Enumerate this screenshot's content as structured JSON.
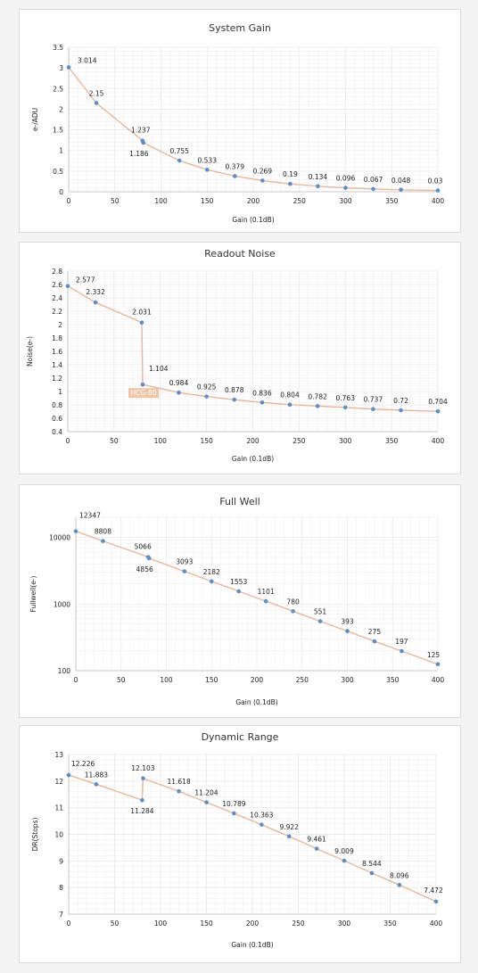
{
  "colors": {
    "line": "#e8b79d",
    "point": "#5b8fc9",
    "grid": "#e9e9e9",
    "badge_bg": "#f2c4a8",
    "badge_text": "#ffffff"
  },
  "chart_data": [
    {
      "type": "line",
      "title": "System Gain",
      "xlabel": "Gain (0.1dB)",
      "ylabel": "e-/ADU",
      "xlim": [
        0,
        400
      ],
      "ylim": [
        0,
        3.5
      ],
      "xticks": [
        0,
        50,
        100,
        150,
        200,
        250,
        300,
        350,
        400
      ],
      "yticks": [
        0,
        0.5,
        1,
        1.5,
        2,
        2.5,
        3,
        3.5
      ],
      "ytick_labels": [
        "0",
        "0.5",
        "1",
        "1.5",
        "2",
        "2.5",
        "3",
        "3.5"
      ],
      "grid": true,
      "x": [
        0,
        30,
        80,
        81,
        120,
        150,
        180,
        210,
        240,
        270,
        300,
        330,
        360,
        400
      ],
      "y": [
        3.014,
        2.15,
        1.237,
        1.186,
        0.755,
        0.533,
        0.379,
        0.269,
        0.19,
        0.134,
        0.096,
        0.067,
        0.048,
        0.03
      ],
      "labels": [
        "3.014",
        "2.15",
        "1.237",
        "1.186",
        "0.755",
        "0.533",
        "0.379",
        "0.269",
        "0.19",
        "0.134",
        "0.096",
        "0.067",
        "0.048",
        "0.03"
      ]
    },
    {
      "type": "line",
      "title": "Readout Noise",
      "xlabel": "Gain (0.1dB)",
      "ylabel": "Noise(e-)",
      "xlim": [
        0,
        400
      ],
      "ylim": [
        0.4,
        2.8
      ],
      "xticks": [
        0,
        50,
        100,
        150,
        200,
        250,
        300,
        350,
        400
      ],
      "yticks": [
        0.4,
        0.6,
        0.8,
        1,
        1.2,
        1.4,
        1.6,
        1.8,
        2,
        2.2,
        2.4,
        2.6,
        2.8
      ],
      "ytick_labels": [
        "0.4",
        "0.6",
        "0.8",
        "1",
        "1.2",
        "1.4",
        "1.6",
        "1.8",
        "2",
        "2.2",
        "2.4",
        "2.6",
        "2.8"
      ],
      "grid": true,
      "x": [
        0,
        30,
        80,
        81,
        120,
        150,
        180,
        210,
        240,
        270,
        300,
        330,
        360,
        400
      ],
      "y": [
        2.577,
        2.332,
        2.031,
        1.104,
        0.984,
        0.925,
        0.878,
        0.836,
        0.804,
        0.782,
        0.763,
        0.737,
        0.72,
        0.704
      ],
      "labels": [
        "2.577",
        "2.332",
        "2.031",
        "1.104",
        "0.984",
        "0.925",
        "0.878",
        "0.836",
        "0.804",
        "0.782",
        "0.763",
        "0.737",
        "0.72",
        "0.704"
      ],
      "annotation": "HCG-80"
    },
    {
      "type": "line",
      "title": "Full Well",
      "xlabel": "Gain (0.1dB)",
      "ylabel": "Fullwell(e-)",
      "xlim": [
        0,
        400
      ],
      "ylim": [
        100,
        20000
      ],
      "yscale": "log",
      "xticks": [
        0,
        50,
        100,
        150,
        200,
        250,
        300,
        350,
        400
      ],
      "yticks": [
        100,
        1000,
        10000
      ],
      "ytick_labels": [
        "100",
        "1000",
        "10000"
      ],
      "grid": true,
      "x": [
        0,
        30,
        80,
        81,
        120,
        150,
        180,
        210,
        240,
        270,
        300,
        330,
        360,
        400
      ],
      "y": [
        12347,
        8808,
        5066,
        4856,
        3093,
        2182,
        1553,
        1101,
        780,
        551,
        393,
        275,
        197,
        125
      ],
      "labels": [
        "12347",
        "8808",
        "5066",
        "4856",
        "3093",
        "2182",
        "1553",
        "1101",
        "780",
        "551",
        "393",
        "275",
        "197",
        "125"
      ]
    },
    {
      "type": "line",
      "title": "Dynamic Range",
      "xlabel": "Gain (0.1dB)",
      "ylabel": "DR(Stops)",
      "xlim": [
        0,
        400
      ],
      "ylim": [
        7,
        13
      ],
      "xticks": [
        0,
        50,
        100,
        150,
        200,
        250,
        300,
        350,
        400
      ],
      "yticks": [
        7,
        8,
        9,
        10,
        11,
        12,
        13
      ],
      "ytick_labels": [
        "7",
        "8",
        "9",
        "10",
        "11",
        "12",
        "13"
      ],
      "grid": true,
      "x": [
        0,
        30,
        80,
        81,
        120,
        150,
        180,
        210,
        240,
        270,
        300,
        330,
        360,
        400
      ],
      "y": [
        12.226,
        11.883,
        11.284,
        12.103,
        11.618,
        11.204,
        10.789,
        10.363,
        9.922,
        9.461,
        9.009,
        8.544,
        8.096,
        7.472
      ],
      "labels": [
        "12.226",
        "11.883",
        "11.284",
        "12.103",
        "11.618",
        "11.204",
        "10.789",
        "10.363",
        "9.922",
        "9.461",
        "9.009",
        "8.544",
        "8.096",
        "7.472"
      ]
    }
  ]
}
